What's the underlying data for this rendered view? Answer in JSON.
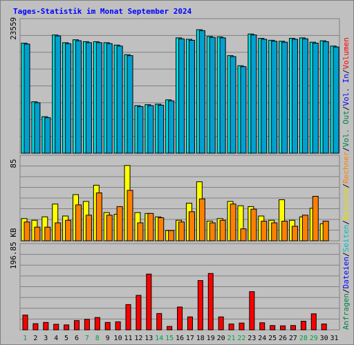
{
  "chart_data": {
    "type": "bar",
    "title": "Tages-Statistik im Monat September 2024",
    "days": [
      "1",
      "2",
      "3",
      "4",
      "5",
      "6",
      "7",
      "8",
      "9",
      "10",
      "11",
      "12",
      "13",
      "14",
      "15",
      "16",
      "17",
      "18",
      "19",
      "20",
      "21",
      "22",
      "23",
      "24",
      "25",
      "26",
      "27",
      "28",
      "29",
      "30",
      "31"
    ],
    "weekend_days": [
      "1",
      "7",
      "8",
      "14",
      "15",
      "21",
      "22",
      "28",
      "29"
    ],
    "panels": [
      {
        "tick_label": "23559",
        "ylim": [
          0,
          28000
        ],
        "tick_value": 23559,
        "series": [
          {
            "name": "Anfragen",
            "color": "#00e0e0",
            "values": [
              22900,
              10700,
              7600,
              24600,
              23000,
              23600,
              23200,
              23200,
              23000,
              22500,
              20500,
              9900,
              10100,
              10200,
              11100,
              24000,
              23700,
              25700,
              24300,
              24200,
              20300,
              18200,
              24800,
              23900,
              23500,
              23300,
              23900,
              24000,
              23100,
              23400,
              22300
            ]
          },
          {
            "name": "Dateien",
            "color": "#00a0d0",
            "values": [
              22700,
              10500,
              7400,
              24400,
              22800,
              23400,
              23000,
              23000,
              22800,
              22300,
              20300,
              9700,
              9900,
              10000,
              10900,
              23800,
              23500,
              25500,
              24100,
              24000,
              20100,
              18000,
              24600,
              23700,
              23300,
              23100,
              23700,
              23800,
              22900,
              23200,
              22100
            ]
          },
          {
            "name": "Seiten",
            "color": "#00c8c8",
            "values": [
              0,
              0,
              0,
              0,
              0,
              0,
              0,
              0,
              0,
              0,
              0,
              0,
              0,
              0,
              0,
              0,
              0,
              0,
              0,
              0,
              0,
              0,
              0,
              0,
              0,
              0,
              0,
              0,
              0,
              0,
              0
            ]
          }
        ]
      },
      {
        "tick_label": "85",
        "ylim": [
          0,
          100
        ],
        "tick_value": 85,
        "series": [
          {
            "name": "Besuche",
            "color": "#ffff00",
            "values": [
              26,
              24,
              28,
              43,
              29,
              54,
              46,
              65,
              33,
              31,
              88,
              33,
              32,
              28,
              12,
              24,
              44,
              69,
              23,
              26,
              46,
              41,
              40,
              29,
              24,
              48,
              24,
              28,
              38,
              20,
              0
            ]
          },
          {
            "name": "Rechner",
            "color": "#ff8000",
            "values": [
              22,
              16,
              16,
              21,
              24,
              42,
              30,
              56,
              30,
              40,
              59,
              21,
              32,
              27,
              12,
              22,
              34,
              49,
              21,
              24,
              43,
              14,
              37,
              23,
              21,
              23,
              17,
              30,
              52,
              23,
              0
            ]
          }
        ]
      },
      {
        "tick_label": "196.85 KB",
        "ylim": [
          0,
          280
        ],
        "tick_value": 196.85,
        "series": [
          {
            "name": "Volumen",
            "color": "#ff0000",
            "values": [
              48,
              20,
              24,
              18,
              16,
              30,
              34,
              40,
              24,
              26,
              82,
              112,
              181,
              53,
              11,
              74,
              42,
              160,
              183,
              42,
              19,
              22,
              124,
              23,
              14,
              13,
              14,
              28,
              52,
              19,
              0
            ]
          }
        ]
      }
    ],
    "legend_right": [
      {
        "text": "Anfragen",
        "color": "#008040"
      },
      {
        "text": "/",
        "color": "#000000"
      },
      {
        "text": "Dateien",
        "color": "#0000ff"
      },
      {
        "text": "/",
        "color": "#000000"
      },
      {
        "text": "Seiten",
        "color": "#00c0c0"
      },
      {
        "text": "/",
        "color": "#000000"
      },
      {
        "text": "Besuche",
        "color": "#e0e000"
      },
      {
        "text": "/",
        "color": "#000000"
      },
      {
        "text": "Rechner",
        "color": "#ff8000"
      },
      {
        "text": "/",
        "color": "#000000"
      },
      {
        "text": "Vol. Out",
        "color": "#008040"
      },
      {
        "text": "/",
        "color": "#000000"
      },
      {
        "text": "Vol. In",
        "color": "#0000ff"
      },
      {
        "text": "/",
        "color": "#000000"
      },
      {
        "text": "Volumen",
        "color": "#ff0000"
      }
    ],
    "colors": {
      "title": "#0000ff",
      "weekday_label": "#000000",
      "weekend_label": "#00a040",
      "plot_bg": "#c0c0c0",
      "grid": "#808080"
    },
    "grid": true
  }
}
